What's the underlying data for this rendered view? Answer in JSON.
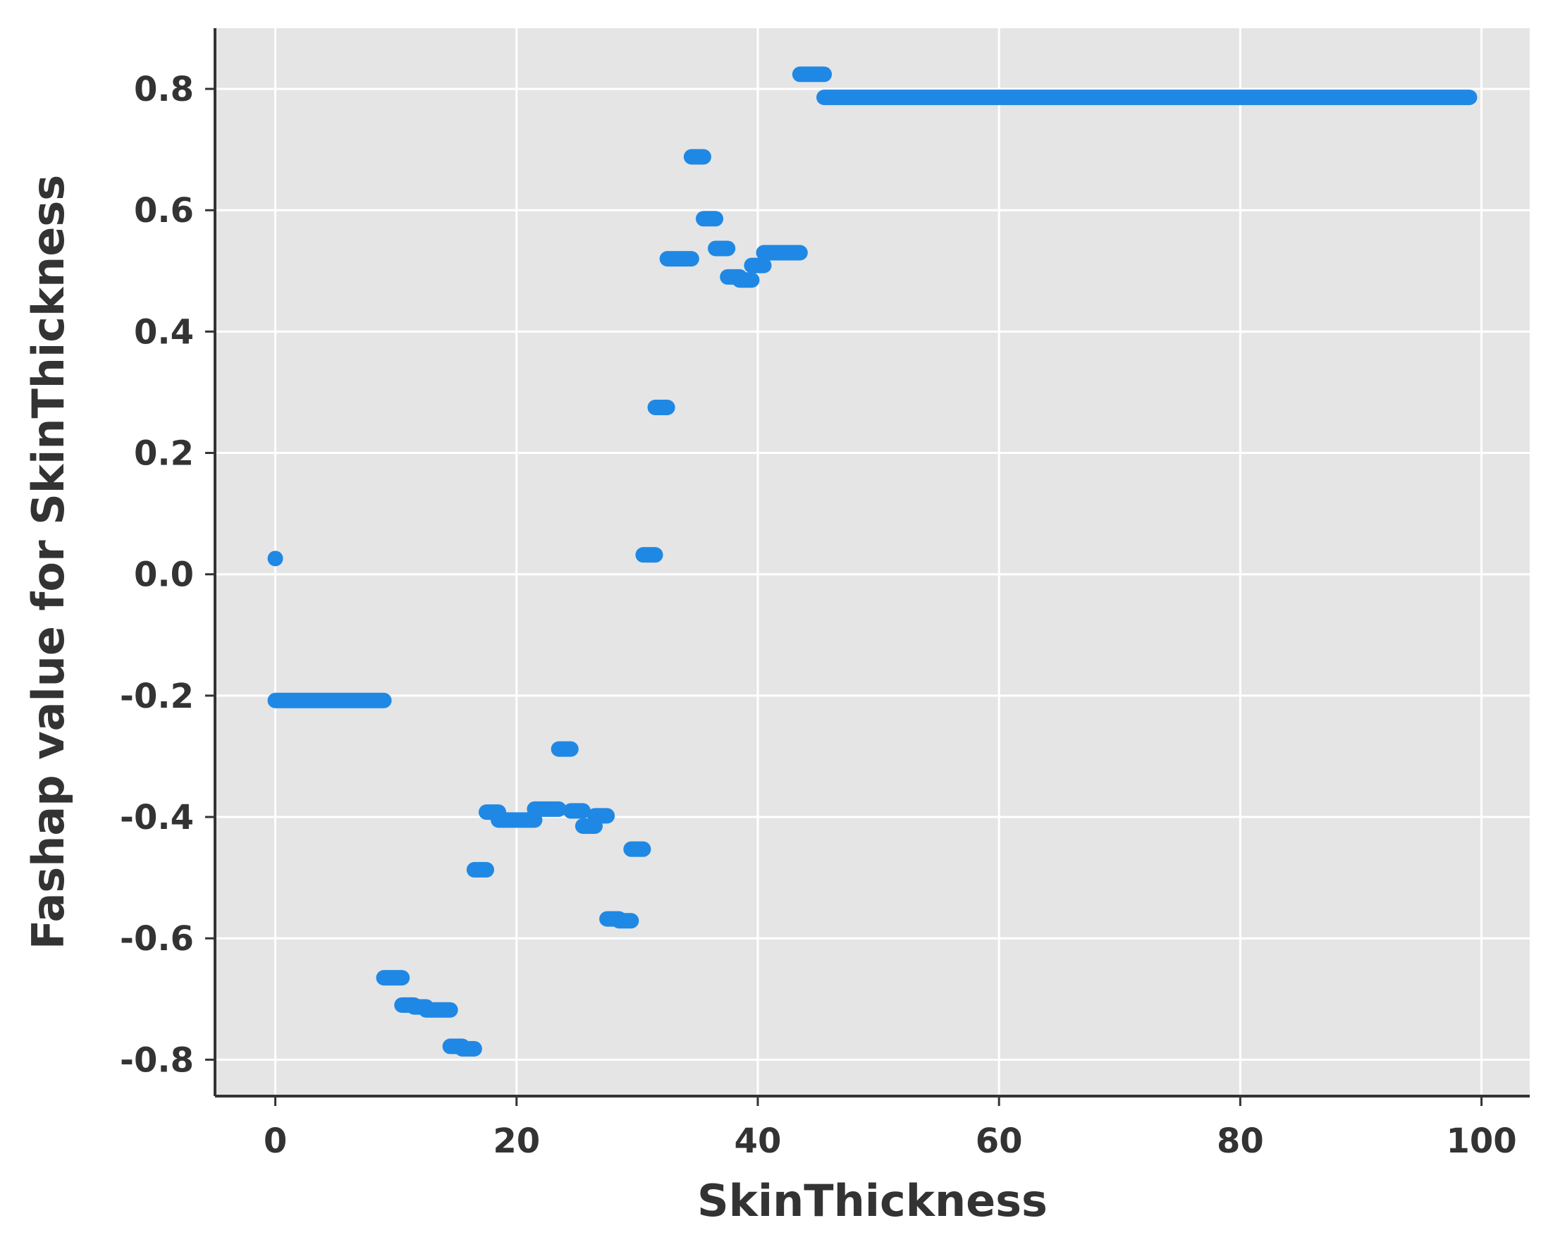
{
  "chart_data": {
    "type": "scatter",
    "title": "",
    "xlabel": "SkinThickness",
    "ylabel": "Fashap value for SkinThickness",
    "xlim": [
      -5,
      104
    ],
    "ylim": [
      -0.86,
      0.9
    ],
    "x_ticks": [
      0,
      20,
      40,
      60,
      80,
      100
    ],
    "x_tick_labels": [
      "0",
      "20",
      "40",
      "60",
      "80",
      "100"
    ],
    "y_ticks": [
      -0.8,
      -0.6,
      -0.4,
      -0.2,
      0.0,
      0.2,
      0.4,
      0.6,
      0.8
    ],
    "y_tick_labels": [
      "-0.8",
      "-0.6",
      "-0.4",
      "-0.2",
      "0.0",
      "0.2",
      "0.4",
      "0.6",
      "0.8"
    ],
    "grid": true,
    "colors": {
      "background": "#e5e5e5",
      "grid": "#ffffff",
      "marker": "#1f88e5",
      "axis": "#333333"
    },
    "series": [
      {
        "segments": [
          {
            "x0": 0,
            "x1": 0,
            "y": 0.026
          },
          {
            "x0": 0,
            "x1": 9,
            "y": -0.208
          },
          {
            "x0": 9,
            "x1": 10.5,
            "y": -0.665
          },
          {
            "x0": 10.5,
            "x1": 11.5,
            "y": -0.71
          },
          {
            "x0": 11.5,
            "x1": 12.5,
            "y": -0.713
          },
          {
            "x0": 12.5,
            "x1": 14.5,
            "y": -0.718
          },
          {
            "x0": 14.5,
            "x1": 15.5,
            "y": -0.778
          },
          {
            "x0": 15.5,
            "x1": 16.5,
            "y": -0.782
          },
          {
            "x0": 16.5,
            "x1": 17.5,
            "y": -0.487
          },
          {
            "x0": 17.5,
            "x1": 18.5,
            "y": -0.392
          },
          {
            "x0": 18.5,
            "x1": 21.5,
            "y": -0.405
          },
          {
            "x0": 21.5,
            "x1": 23.5,
            "y": -0.387
          },
          {
            "x0": 23.5,
            "x1": 24.5,
            "y": -0.288
          },
          {
            "x0": 24.5,
            "x1": 25.5,
            "y": -0.39
          },
          {
            "x0": 25.5,
            "x1": 26.5,
            "y": -0.415
          },
          {
            "x0": 26.5,
            "x1": 27.5,
            "y": -0.398
          },
          {
            "x0": 27.5,
            "x1": 28.5,
            "y": -0.568
          },
          {
            "x0": 28.5,
            "x1": 29.5,
            "y": -0.571
          },
          {
            "x0": 29.5,
            "x1": 30.5,
            "y": -0.453
          },
          {
            "x0": 30.5,
            "x1": 31.5,
            "y": 0.032
          },
          {
            "x0": 31.5,
            "x1": 32.5,
            "y": 0.275
          },
          {
            "x0": 32.5,
            "x1": 34.5,
            "y": 0.52
          },
          {
            "x0": 34.5,
            "x1": 35.5,
            "y": 0.688
          },
          {
            "x0": 35.5,
            "x1": 36.5,
            "y": 0.586
          },
          {
            "x0": 36.5,
            "x1": 37.5,
            "y": 0.537
          },
          {
            "x0": 37.5,
            "x1": 38.5,
            "y": 0.49
          },
          {
            "x0": 38.5,
            "x1": 39.5,
            "y": 0.485
          },
          {
            "x0": 39.5,
            "x1": 40.5,
            "y": 0.509
          },
          {
            "x0": 40.5,
            "x1": 43.5,
            "y": 0.53
          },
          {
            "x0": 43.5,
            "x1": 45.5,
            "y": 0.824
          },
          {
            "x0": 45.5,
            "x1": 99,
            "y": 0.786
          }
        ]
      }
    ]
  }
}
